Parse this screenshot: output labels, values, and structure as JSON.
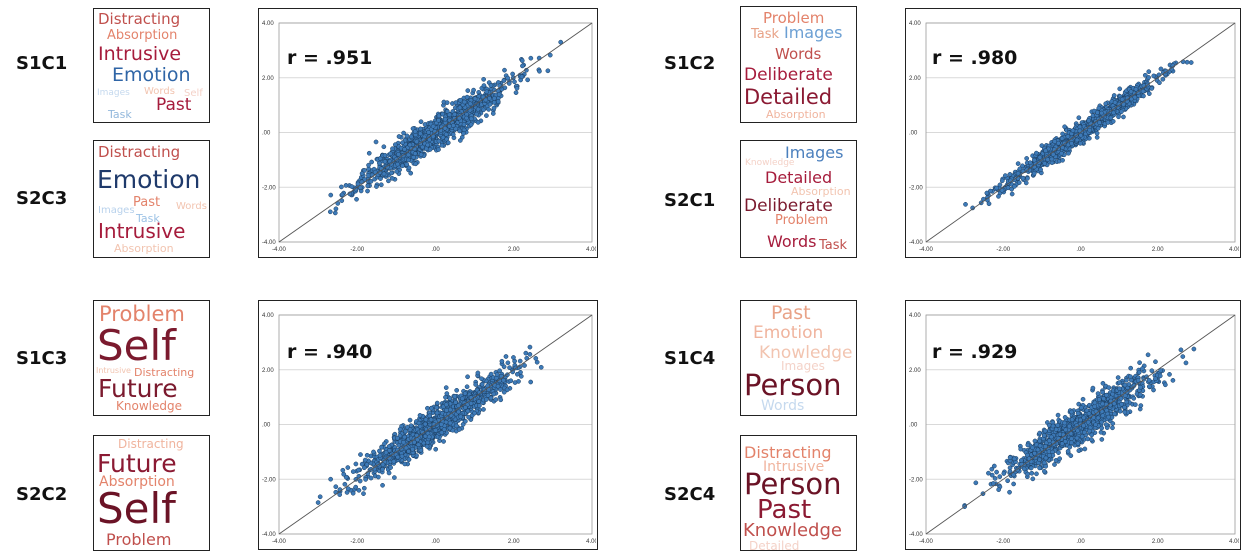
{
  "panels": [
    {
      "top_label": "S1C1",
      "bottom_label": "S2C3",
      "top_cloud": [
        {
          "text": "Distracting",
          "color": "#c0504d"
        },
        {
          "text": "Absorption",
          "color": "#e3836b"
        },
        {
          "text": "Intrusive",
          "color": "#a61c3c"
        },
        {
          "text": "Emotion",
          "color": "#2f65a6"
        },
        {
          "text": "Images",
          "color": "#c5d9ee"
        },
        {
          "text": "Words",
          "color": "#f2c4b0"
        },
        {
          "text": "Self",
          "color": "#f4d2c8"
        },
        {
          "text": "Past",
          "color": "#a61c3c"
        },
        {
          "text": "Task",
          "color": "#93b8dc"
        }
      ],
      "bottom_cloud": [
        {
          "text": "Distracting",
          "color": "#c0504d"
        },
        {
          "text": "Emotion",
          "color": "#1f3a6b"
        },
        {
          "text": "Images",
          "color": "#b9d2ec"
        },
        {
          "text": "Task",
          "color": "#9cc2e5"
        },
        {
          "text": "Past",
          "color": "#e3836b"
        },
        {
          "text": "Words",
          "color": "#f2c4b0"
        },
        {
          "text": "Intrusive",
          "color": "#a61c3c"
        },
        {
          "text": "Absorption",
          "color": "#f2c4b0"
        }
      ],
      "r": "r = .951"
    },
    {
      "top_label": "S1C2",
      "bottom_label": "S2C1",
      "top_cloud": [
        {
          "text": "Problem",
          "color": "#e3836b"
        },
        {
          "text": "Task",
          "color": "#e8a287"
        },
        {
          "text": "Images",
          "color": "#6b9fd3"
        },
        {
          "text": "Words",
          "color": "#c0504d"
        },
        {
          "text": "Deliberate",
          "color": "#a61c3c"
        },
        {
          "text": "Detailed",
          "color": "#8b1a33"
        },
        {
          "text": "Absorption",
          "color": "#f0b49e"
        }
      ],
      "bottom_cloud": [
        {
          "text": "Images",
          "color": "#4a7fbd"
        },
        {
          "text": "Knowledge",
          "color": "#f4d2c8"
        },
        {
          "text": "Detailed",
          "color": "#a61c3c"
        },
        {
          "text": "Absorption",
          "color": "#f2c4b0"
        },
        {
          "text": "Deliberate",
          "color": "#7b1a2e"
        },
        {
          "text": "Problem",
          "color": "#e3836b"
        },
        {
          "text": "Words",
          "color": "#a61c3c"
        },
        {
          "text": "Task",
          "color": "#c0504d"
        }
      ],
      "r": "r = .980"
    },
    {
      "top_label": "S1C3",
      "bottom_label": "S2C2",
      "top_cloud": [
        {
          "text": "Problem",
          "color": "#e3836b"
        },
        {
          "text": "Self",
          "color": "#7b1a2e"
        },
        {
          "text": "Intrusive",
          "color": "#f2c4b0"
        },
        {
          "text": "Distracting",
          "color": "#e3836b"
        },
        {
          "text": "Future",
          "color": "#7b1a2e"
        },
        {
          "text": "Knowledge",
          "color": "#e3836b"
        }
      ],
      "bottom_cloud": [
        {
          "text": "Distracting",
          "color": "#f0b49e"
        },
        {
          "text": "Future",
          "color": "#8b1a33"
        },
        {
          "text": "Absorption",
          "color": "#e3836b"
        },
        {
          "text": "Self",
          "color": "#6b1326"
        },
        {
          "text": "Problem",
          "color": "#c0504d"
        }
      ],
      "r": "r = .940"
    },
    {
      "top_label": "S1C4",
      "bottom_label": "S2C4",
      "top_cloud": [
        {
          "text": "Past",
          "color": "#e8a287"
        },
        {
          "text": "Emotion",
          "color": "#f0b49e"
        },
        {
          "text": "Knowledge",
          "color": "#f2c4b0"
        },
        {
          "text": "Images",
          "color": "#f4d2c8"
        },
        {
          "text": "Person",
          "color": "#6b1326"
        },
        {
          "text": "Words",
          "color": "#c5d9ee"
        }
      ],
      "bottom_cloud": [
        {
          "text": "Distracting",
          "color": "#e3836b"
        },
        {
          "text": "Intrusive",
          "color": "#f0b49e"
        },
        {
          "text": "Person",
          "color": "#6b1326"
        },
        {
          "text": "Past",
          "color": "#8b1a33"
        },
        {
          "text": "Knowledge",
          "color": "#c0504d"
        },
        {
          "text": "Detailed",
          "color": "#f4d2c8"
        }
      ],
      "r": "r = .929"
    }
  ],
  "chart_data": [
    {
      "type": "scatter",
      "title": "",
      "xlabel": "",
      "ylabel": "",
      "r": ".951",
      "xlim": [
        -4,
        4
      ],
      "ylim": [
        -4,
        4
      ],
      "xticks": [
        "-4.00",
        "-2.00",
        ".00",
        "2.00",
        "4.00"
      ],
      "yticks": [
        "4.00",
        "2.00",
        ".00",
        "-2.00",
        "-4.00"
      ],
      "reference_line": "y = x",
      "points_summary": {
        "x_range": [
          -3,
          3.2
        ],
        "y_range": [
          -2.8,
          3.3
        ]
      }
    },
    {
      "type": "scatter",
      "title": "",
      "xlabel": "",
      "ylabel": "",
      "r": ".980",
      "xlim": [
        -4,
        4
      ],
      "ylim": [
        -4,
        4
      ],
      "xticks": [
        "-4.00",
        "-2.00",
        ".00",
        "2.00",
        "4.00"
      ],
      "yticks": [
        "4.00",
        "2.00",
        ".00",
        "-2.00",
        "-4.00"
      ],
      "reference_line": "y = x",
      "points_summary": {
        "x_range": [
          -2.4,
          2.9
        ],
        "y_range": [
          -2.5,
          3.0
        ]
      }
    },
    {
      "type": "scatter",
      "title": "",
      "xlabel": "",
      "ylabel": "",
      "r": ".940",
      "xlim": [
        -4,
        4
      ],
      "ylim": [
        -4,
        4
      ],
      "xticks": [
        "-4.00",
        "-2.00",
        ".00",
        "2.00",
        "4.00"
      ],
      "yticks": [
        "4.00",
        "2.00",
        ".00",
        "-2.00",
        "-4.00"
      ],
      "reference_line": "y = x",
      "points_summary": {
        "x_range": [
          -2.6,
          3.0
        ],
        "y_range": [
          -3.0,
          2.8
        ]
      }
    },
    {
      "type": "scatter",
      "title": "",
      "xlabel": "",
      "ylabel": "",
      "r": ".929",
      "xlim": [
        -4,
        4
      ],
      "ylim": [
        -4,
        4
      ],
      "xticks": [
        "-4.00",
        "-2.00",
        ".00",
        "2.00",
        "4.00"
      ],
      "yticks": [
        "4.00",
        "2.00",
        ".00",
        "-2.00",
        "-4.00"
      ],
      "reference_line": "y = x",
      "points_summary": {
        "x_range": [
          -2.6,
          3.2
        ],
        "y_range": [
          -2.8,
          3.2
        ]
      }
    }
  ]
}
